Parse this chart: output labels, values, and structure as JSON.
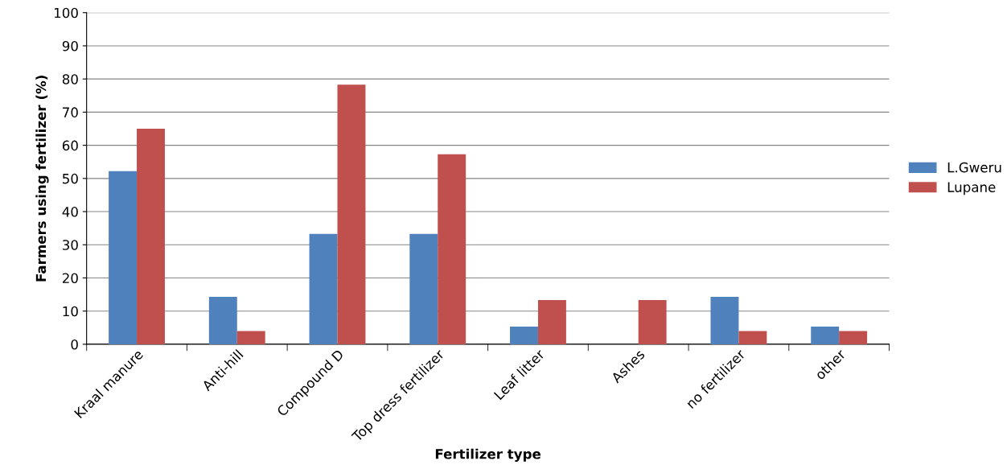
{
  "chart_data": {
    "type": "bar",
    "xlabel": "Fertilizer type",
    "ylabel": "Farmers using fertilizer (%)",
    "categories": [
      "Kraal manure",
      "Anti-hill",
      "Compound D",
      "Top dress fertilizer",
      "Leaf litter",
      "Ashes",
      "no fertilizer",
      "other"
    ],
    "series": [
      {
        "name": "L.Gweru",
        "color": "#4f81bd",
        "values": [
          52.2,
          14.3,
          33.3,
          33.3,
          5.3,
          0,
          14.3,
          5.3
        ]
      },
      {
        "name": "Lupane",
        "color": "#c0504d",
        "values": [
          65,
          4,
          78.3,
          57.3,
          13.3,
          13.3,
          4,
          4
        ]
      }
    ],
    "ylim": [
      0,
      100
    ],
    "yticks": [
      0,
      10,
      20,
      30,
      40,
      50,
      60,
      70,
      80,
      90,
      100
    ],
    "grid": "y",
    "legend": "right"
  }
}
